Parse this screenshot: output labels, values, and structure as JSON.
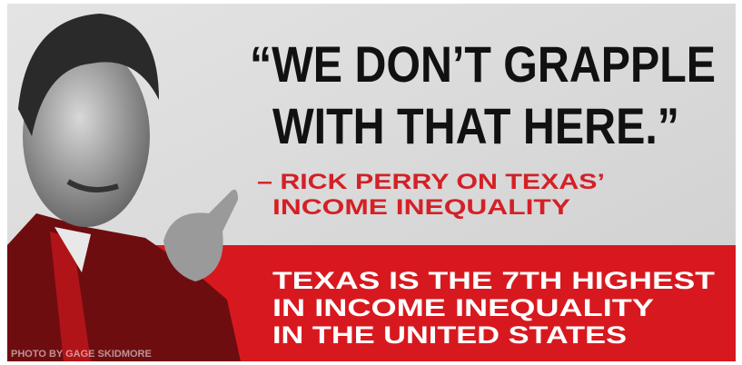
{
  "quote": {
    "lines": [
      "“WE DON’T GRAPPLE",
      "WITH THAT HERE.”"
    ]
  },
  "attribution": {
    "lines": [
      "– RICK PERRY ON TEXAS’",
      "INCOME INEQUALITY"
    ]
  },
  "fact": {
    "lines": [
      "TEXAS IS THE 7TH HIGHEST",
      "IN INCOME INEQUALITY",
      "IN THE UNITED STATES"
    ]
  },
  "credit": "PHOTO BY GAGE SKIDMORE"
}
